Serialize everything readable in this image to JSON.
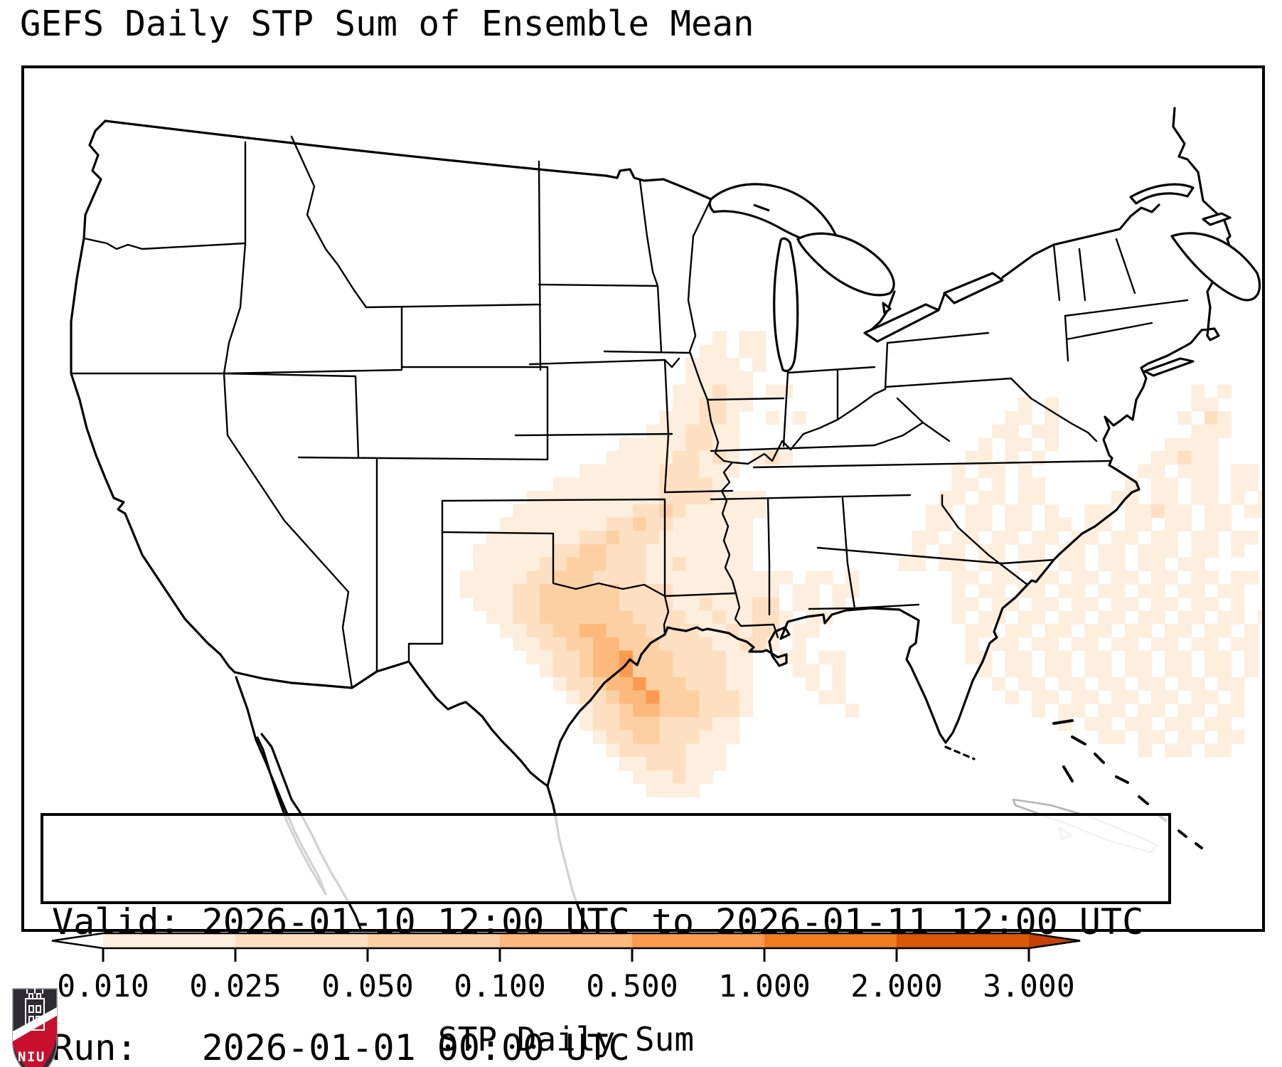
{
  "title": "GEFS Daily STP Sum of Ensemble Mean",
  "info_box": {
    "line1_label": "Valid:",
    "line1_value": "2026-01-10 12:00 UTC to 2026-01-11 12:00 UTC",
    "line2_label": "Run:",
    "line2_value": "2026-01-01 00:00 UTC"
  },
  "colorbar": {
    "label": "STP Daily Sum",
    "tick_labels": [
      "0.010",
      "0.025",
      "0.050",
      "0.100",
      "0.500",
      "1.000",
      "2.000",
      "3.000"
    ],
    "segment_colors": [
      "#fdeedd",
      "#fde0c2",
      "#fdd0a3",
      "#fdb97c",
      "#fd9a4e",
      "#f07c22",
      "#da5807"
    ],
    "under_color": "#ffffff",
    "over_color": "#c44103",
    "outline_color": "#000000"
  },
  "logo": {
    "text": "NIU",
    "red": "#c8102e",
    "dark": "#2e2c32"
  },
  "map": {
    "line_color": "#000000",
    "muted_line_color": "#b3b3b3",
    "background": "#ffffff"
  },
  "chart_data": {
    "type": "heatmap",
    "title": "GEFS Daily STP Sum of Ensemble Mean",
    "colorbar_label": "STP Daily Sum",
    "scale_boundaries": [
      0.01,
      0.025,
      0.05,
      0.1,
      0.5,
      1.0,
      2.0,
      3.0
    ],
    "scale_extend": "both",
    "palette": [
      "#fdeedd",
      "#fde0c2",
      "#fdd0a3",
      "#fdb97c",
      "#fd9a4e",
      "#f07c22",
      "#da5807"
    ],
    "under_color": "#ffffff",
    "over_color": "#c44103",
    "grid": {
      "cell_size": 18.7
    },
    "cells": [
      {
        "r": 20,
        "c": 52,
        "v": "1011"
      },
      {
        "r": 21,
        "c": 51,
        "v": "11011"
      },
      {
        "r": 22,
        "c": 50,
        "v": "111101"
      },
      {
        "r": 23,
        "c": 50,
        "v": "11111"
      },
      {
        "r": 24,
        "c": 49,
        "v": "111211"
      },
      {
        "r": 24,
        "c": 56,
        "v": "11"
      },
      {
        "r": 24,
        "c": 88,
        "v": "101"
      },
      {
        "r": 25,
        "c": 49,
        "v": "112211"
      },
      {
        "r": 25,
        "c": 75,
        "v": "101"
      },
      {
        "r": 25,
        "c": 88,
        "v": "11"
      },
      {
        "r": 26,
        "c": 48,
        "v": "111221"
      },
      {
        "r": 26,
        "c": 56,
        "v": "101"
      },
      {
        "r": 26,
        "c": 74,
        "v": "1101"
      },
      {
        "r": 26,
        "c": 87,
        "v": "1021"
      },
      {
        "r": 27,
        "c": 47,
        "v": "1112211"
      },
      {
        "r": 27,
        "c": 73,
        "v": "11011"
      },
      {
        "r": 27,
        "c": 88,
        "v": "111"
      },
      {
        "r": 28,
        "c": 45,
        "v": "111112211"
      },
      {
        "r": 28,
        "c": 72,
        "v": "101101"
      },
      {
        "r": 28,
        "c": 86,
        "v": "1111"
      },
      {
        "r": 29,
        "c": 44,
        "v": "1111122121"
      },
      {
        "r": 29,
        "c": 55,
        "v": "121"
      },
      {
        "r": 29,
        "c": 71,
        "v": "110101"
      },
      {
        "r": 29,
        "c": 85,
        "v": "11211"
      },
      {
        "r": 30,
        "c": 42,
        "v": "111111222111"
      },
      {
        "r": 30,
        "c": 70,
        "v": "101101"
      },
      {
        "r": 30,
        "c": 84,
        "v": "110111011"
      },
      {
        "r": 31,
        "c": 40,
        "v": "1111111122221"
      },
      {
        "r": 31,
        "c": 70,
        "v": "1101011"
      },
      {
        "r": 31,
        "c": 83,
        "v": "1011011011"
      },
      {
        "r": 32,
        "c": 38,
        "v": "111111111122221111"
      },
      {
        "r": 32,
        "c": 69,
        "v": "11011011"
      },
      {
        "r": 32,
        "c": 82,
        "v": "110110110101"
      },
      {
        "r": 33,
        "c": 37,
        "v": "1111111112232111111"
      },
      {
        "r": 33,
        "c": 68,
        "v": "1101101101"
      },
      {
        "r": 33,
        "c": 80,
        "v": "11011211011011"
      },
      {
        "r": 34,
        "c": 36,
        "v": "1111111122322111111"
      },
      {
        "r": 34,
        "c": 68,
        "v": "110110110110110110110110"
      },
      {
        "r": 35,
        "c": 35,
        "v": "11111112232221111111"
      },
      {
        "r": 35,
        "c": 67,
        "v": "11011011011011011011011011"
      },
      {
        "r": 36,
        "c": 34,
        "v": "111111223322211111111"
      },
      {
        "r": 36,
        "c": 67,
        "v": "1011011011011011011101101"
      },
      {
        "r": 37,
        "c": 34,
        "v": "111112233322211211111"
      },
      {
        "r": 37,
        "c": 66,
        "v": "110110110110110110110110"
      },
      {
        "r": 38,
        "c": 33,
        "v": "1111122333222211111111"
      },
      {
        "r": 38,
        "c": 55,
        "v": "11101101"
      },
      {
        "r": 38,
        "c": 70,
        "v": "11011011011011011011011"
      },
      {
        "r": 39,
        "c": 33,
        "v": "1111223333332222111111"
      },
      {
        "r": 39,
        "c": 55,
        "v": "11011011"
      },
      {
        "r": 39,
        "c": 70,
        "v": "10110110110110110110110"
      },
      {
        "r": 40,
        "c": 34,
        "v": "111223333332222112111"
      },
      {
        "r": 40,
        "c": 55,
        "v": "2201101"
      },
      {
        "r": 40,
        "c": 70,
        "v": "1101101101101101101101"
      },
      {
        "r": 41,
        "c": 35,
        "v": "11223333333222211211"
      },
      {
        "r": 41,
        "c": 55,
        "v": "221011"
      },
      {
        "r": 41,
        "c": 70,
        "v": "101101101101101101101101"
      },
      {
        "r": 42,
        "c": 36,
        "v": "1122334433322221121"
      },
      {
        "r": 42,
        "c": 55,
        "v": "22011"
      },
      {
        "r": 42,
        "c": 70,
        "v": "01101101101101101101101"
      },
      {
        "r": 43,
        "c": 37,
        "v": "112233443332222112"
      },
      {
        "r": 43,
        "c": 55,
        "v": "2101"
      },
      {
        "r": 43,
        "c": 71,
        "v": "1011011011011011011011"
      },
      {
        "r": 44,
        "c": 38,
        "v": "11223445333222211"
      },
      {
        "r": 44,
        "c": 57,
        "v": "11011"
      },
      {
        "r": 44,
        "c": 71,
        "v": "1101101101101101101101"
      },
      {
        "r": 45,
        "c": 39,
        "v": "1223445333222211"
      },
      {
        "r": 45,
        "c": 58,
        "v": "1101"
      },
      {
        "r": 45,
        "c": 72,
        "v": "101101101101101101101"
      },
      {
        "r": 46,
        "c": 40,
        "v": "122344533322211"
      },
      {
        "r": 46,
        "c": 59,
        "v": "101"
      },
      {
        "r": 46,
        "c": 73,
        "v": "10110110110110110110"
      },
      {
        "r": 47,
        "c": 41,
        "v": "12234453332221"
      },
      {
        "r": 47,
        "c": 60,
        "v": "11"
      },
      {
        "r": 47,
        "c": 74,
        "v": "101101101101101101"
      },
      {
        "r": 48,
        "c": 42,
        "v": "1223443332221"
      },
      {
        "r": 48,
        "c": 62,
        "v": "1"
      },
      {
        "r": 48,
        "c": 76,
        "v": "1011011011011011"
      },
      {
        "r": 49,
        "c": 42,
        "v": "122333222211"
      },
      {
        "r": 49,
        "c": 78,
        "v": "10110110110110"
      },
      {
        "r": 50,
        "c": 43,
        "v": "12233222111"
      },
      {
        "r": 50,
        "c": 81,
        "v": "11011011011"
      },
      {
        "r": 51,
        "c": 44,
        "v": "1222221110"
      },
      {
        "r": 51,
        "c": 84,
        "v": "10110110"
      },
      {
        "r": 52,
        "c": 45,
        "v": "11222111"
      },
      {
        "r": 53,
        "c": 46,
        "v": "111211"
      },
      {
        "r": 54,
        "c": 47,
        "v": "1111"
      }
    ]
  }
}
